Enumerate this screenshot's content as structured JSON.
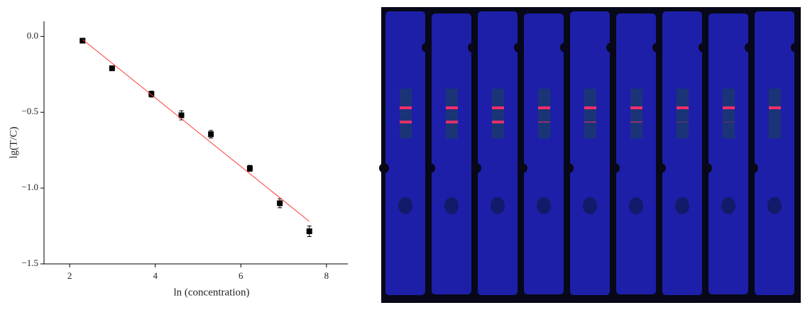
{
  "chart_data": {
    "type": "scatter",
    "xlabel": "ln (concentration)",
    "ylabel": "lg(T/C)",
    "xlim": [
      1.4,
      8.5
    ],
    "ylim": [
      -1.5,
      0.1
    ],
    "xticks": [
      2,
      4,
      6,
      8
    ],
    "yticks": [
      {
        "value": 0,
        "label": "0.0"
      },
      {
        "value": -0.5,
        "label": "−0.5"
      },
      {
        "value": -1.0,
        "label": "−1.0"
      },
      {
        "value": -1.5,
        "label": "−1.5"
      }
    ],
    "series": [
      {
        "type": "scatter",
        "color": "#000000",
        "x": [
          2.3,
          2.99,
          3.91,
          4.61,
          5.3,
          6.21,
          6.91,
          7.6
        ],
        "values": [
          -0.028,
          -0.21,
          -0.38,
          -0.52,
          -0.645,
          -0.87,
          -1.1,
          -1.285
        ],
        "errors": [
          0.01,
          0.015,
          0.02,
          0.03,
          0.025,
          0.02,
          0.03,
          0.035
        ]
      },
      {
        "type": "line",
        "color": "#ff3b30",
        "x": [
          2.3,
          7.6
        ],
        "values": [
          -0.02,
          -1.22
        ]
      }
    ]
  }
}
